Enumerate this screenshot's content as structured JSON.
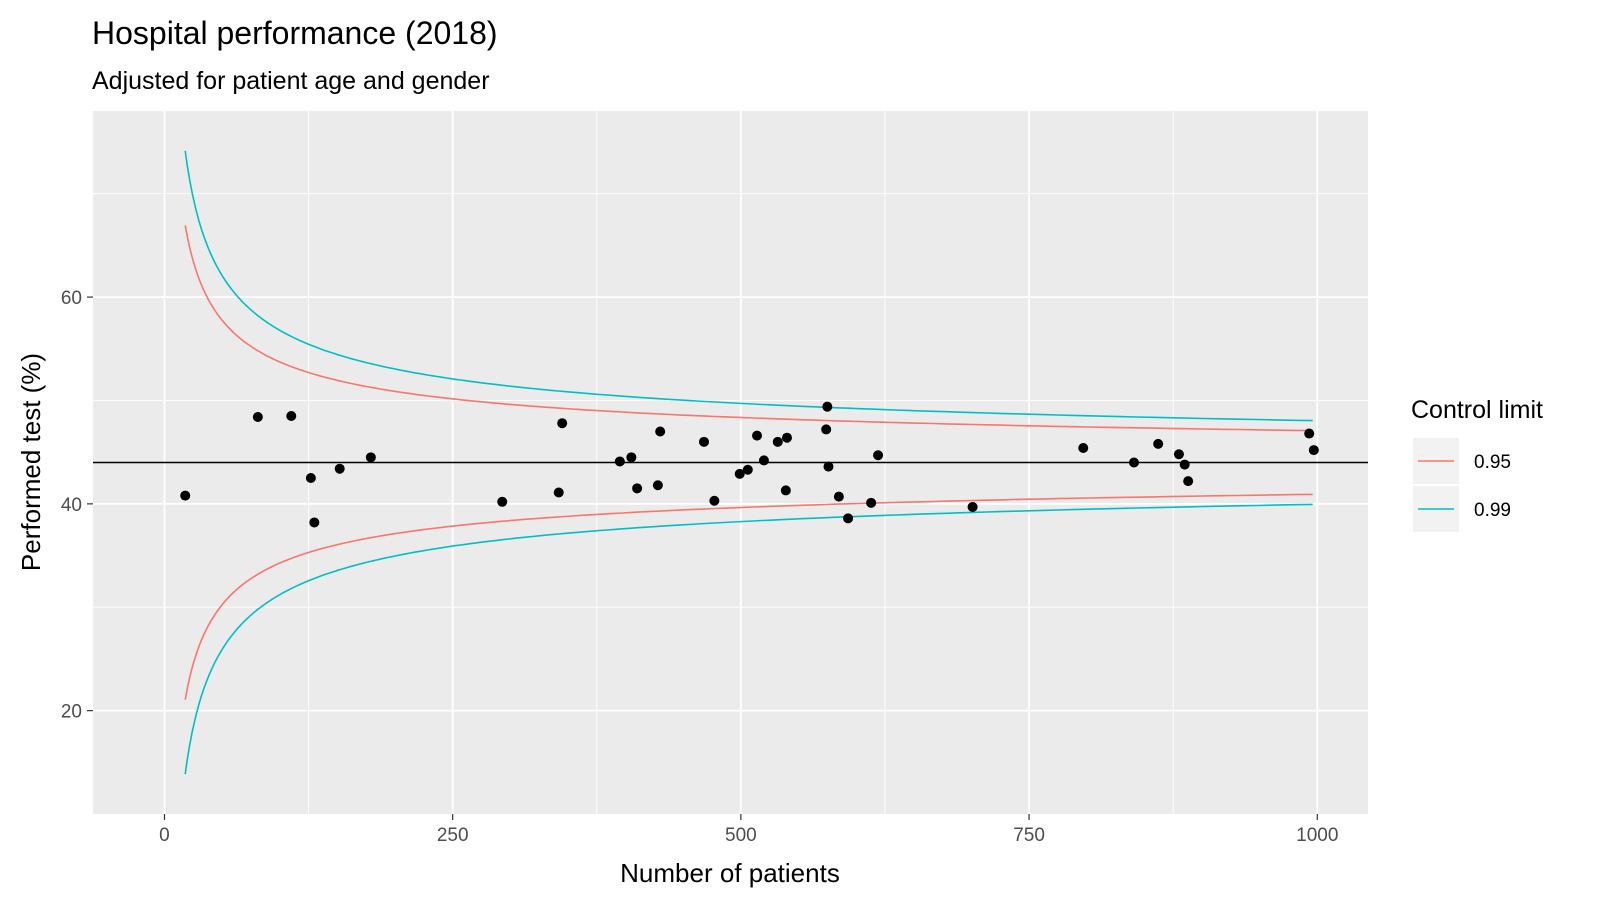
{
  "chart_data": {
    "type": "scatter",
    "title": "Hospital performance (2018)",
    "subtitle": "Adjusted for patient age and gender",
    "xlabel": "Number of patients",
    "ylabel": "Performed test (%)",
    "xlim": [
      -62,
      1044
    ],
    "ylim": [
      10,
      78
    ],
    "x_ticks": [
      0,
      250,
      500,
      750,
      1000
    ],
    "x_tick_labels": [
      "0",
      "250",
      "500",
      "750",
      "1000"
    ],
    "y_ticks": [
      20,
      40,
      60
    ],
    "y_tick_labels": [
      "20",
      "40",
      "60"
    ],
    "grid": true,
    "center_line": 44,
    "legend": {
      "title": "Control limit",
      "placement": "right",
      "entries": [
        {
          "label": "0.95",
          "color": "#F8766D"
        },
        {
          "label": "0.99",
          "color": "#00BFC4"
        }
      ]
    },
    "control_limits": [
      {
        "name": "0.95",
        "z": 1.96,
        "color": "#F8766D"
      },
      {
        "name": "0.99",
        "z": 2.576,
        "color": "#00BFC4"
      }
    ],
    "limit_n_range": [
      18,
      996
    ],
    "points": [
      {
        "x": 18,
        "y": 40.8
      },
      {
        "x": 81,
        "y": 48.4
      },
      {
        "x": 110,
        "y": 48.5
      },
      {
        "x": 127,
        "y": 42.5
      },
      {
        "x": 130,
        "y": 38.2
      },
      {
        "x": 152,
        "y": 43.4
      },
      {
        "x": 179,
        "y": 44.5
      },
      {
        "x": 293,
        "y": 40.2
      },
      {
        "x": 342,
        "y": 41.1
      },
      {
        "x": 345,
        "y": 47.8
      },
      {
        "x": 395,
        "y": 44.1
      },
      {
        "x": 405,
        "y": 44.5
      },
      {
        "x": 410,
        "y": 41.5
      },
      {
        "x": 428,
        "y": 41.8
      },
      {
        "x": 430,
        "y": 47.0
      },
      {
        "x": 468,
        "y": 46.0
      },
      {
        "x": 477,
        "y": 40.3
      },
      {
        "x": 499,
        "y": 42.9
      },
      {
        "x": 506,
        "y": 43.3
      },
      {
        "x": 514,
        "y": 46.6
      },
      {
        "x": 520,
        "y": 44.2
      },
      {
        "x": 532,
        "y": 46.0
      },
      {
        "x": 539,
        "y": 41.3
      },
      {
        "x": 540,
        "y": 46.4
      },
      {
        "x": 574,
        "y": 47.2
      },
      {
        "x": 575,
        "y": 49.4
      },
      {
        "x": 576,
        "y": 43.6
      },
      {
        "x": 585,
        "y": 40.7
      },
      {
        "x": 593,
        "y": 38.6
      },
      {
        "x": 613,
        "y": 40.1
      },
      {
        "x": 619,
        "y": 44.7
      },
      {
        "x": 701,
        "y": 39.7
      },
      {
        "x": 797,
        "y": 45.4
      },
      {
        "x": 841,
        "y": 44.0
      },
      {
        "x": 862,
        "y": 45.8
      },
      {
        "x": 880,
        "y": 44.8
      },
      {
        "x": 885,
        "y": 43.8
      },
      {
        "x": 888,
        "y": 42.2
      },
      {
        "x": 993,
        "y": 46.8
      },
      {
        "x": 997,
        "y": 45.2
      }
    ]
  }
}
